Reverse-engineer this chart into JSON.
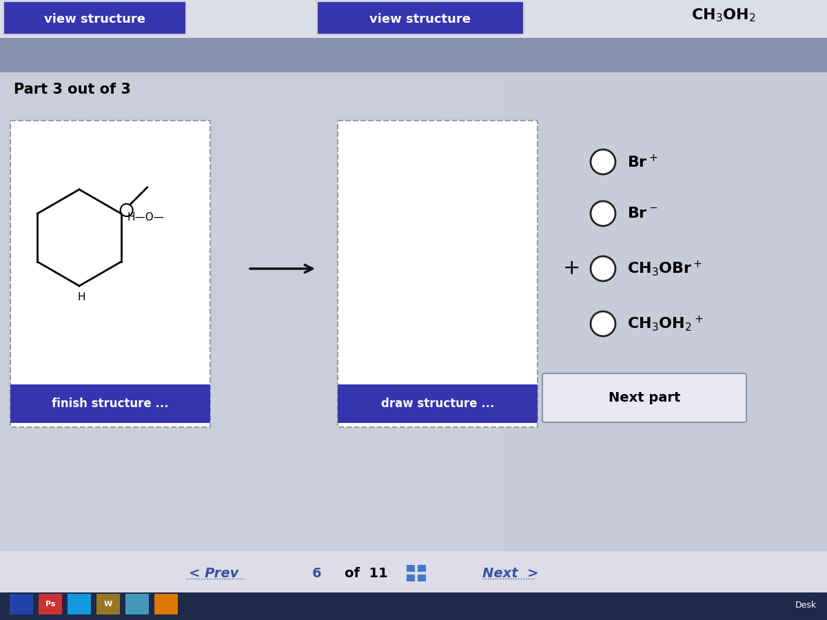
{
  "bg_main": "#c8ccd8",
  "bg_content": "#c8ccd8",
  "bg_top_white": "#e8e8ec",
  "bg_divider": "#9aa0b8",
  "blue_btn_color": "#3535b0",
  "next_part_btn_bg": "#e8e8f0",
  "btn_text_color": "#ffffff",
  "title_text": "Part 3 out of 3",
  "view_structure_btn1": "view structure",
  "view_structure_btn2": "view structure",
  "finish_structure_btn": "finish structure ...",
  "draw_structure_btn": "draw structure ...",
  "next_part_btn": "Next part",
  "plus_sign": "+",
  "nav_text": "6  of  11",
  "prev_text": "< Prev",
  "next_text": "Next  >",
  "taskbar_color": "#1e2a4a",
  "radio_circle_color": "#222222",
  "arrow_color": "#111111",
  "nav_color": "#3a50a0"
}
